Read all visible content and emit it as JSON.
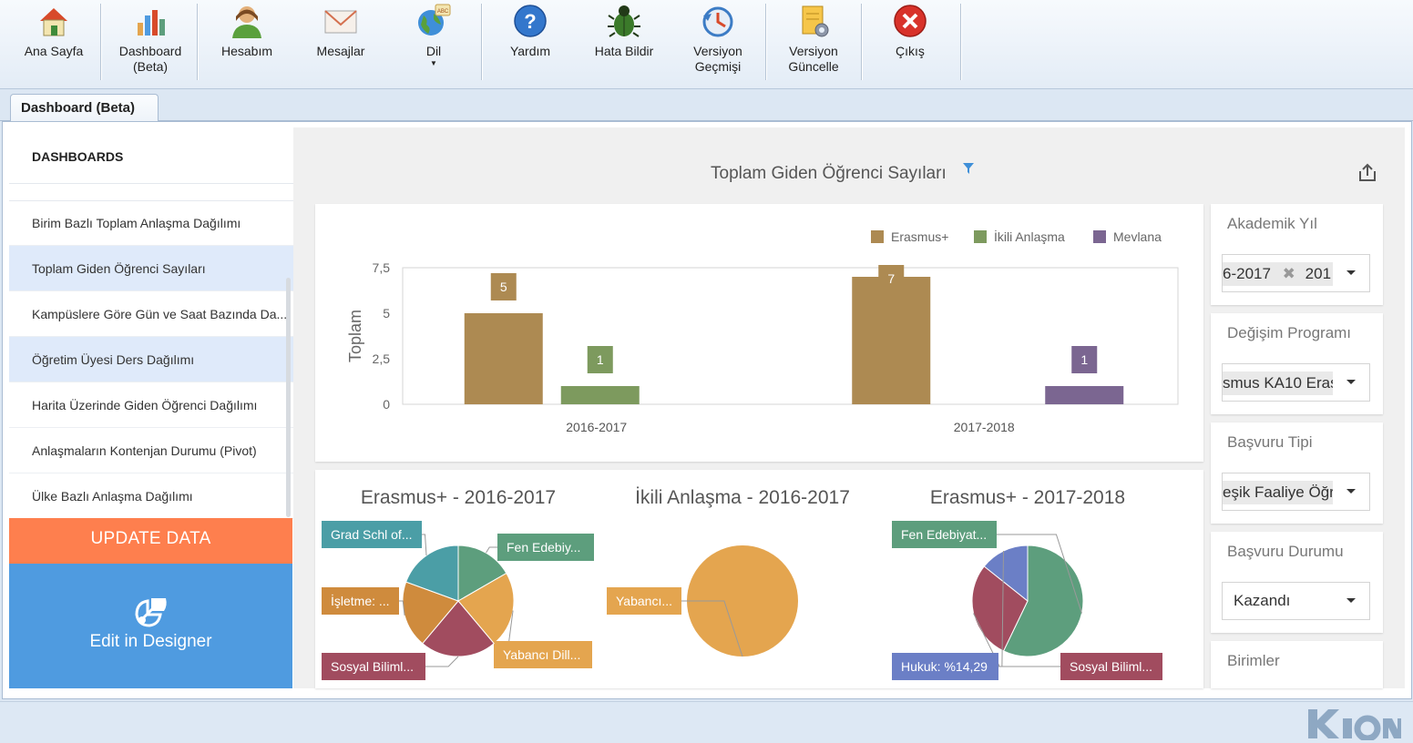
{
  "toolbar": {
    "home": "Ana Sayfa",
    "dashboard_l1": "Dashboard",
    "dashboard_l2": "(Beta)",
    "account": "Hesabım",
    "messages": "Mesajlar",
    "language": "Dil",
    "help": "Yardım",
    "report_bug": "Hata Bildir",
    "version_history_l1": "Versiyon",
    "version_history_l2": "Geçmişi",
    "version_update_l1": "Versiyon",
    "version_update_l2": "Güncelle",
    "exit": "Çıkış"
  },
  "tab": {
    "label": "Dashboard (Beta)"
  },
  "sidebar": {
    "heading": "DASHBOARDS",
    "items": [
      {
        "label": "Birim Bazlı Toplam Anlaşma Dağılımı"
      },
      {
        "label": "Toplam Giden Öğrenci Sayıları"
      },
      {
        "label": "Kampüslere Göre Gün ve Saat Bazında Da..."
      },
      {
        "label": "Öğretim Üyesi Ders Dağılımı"
      },
      {
        "label": "Harita Üzerinde Giden Öğrenci Dağılımı"
      },
      {
        "label": "Anlaşmaların Kontenjan Durumu (Pivot)"
      },
      {
        "label": "Ülke Bazlı Anlaşma Dağılımı"
      }
    ],
    "update_label": "UPDATE DATA",
    "designer_label": "Edit in Designer"
  },
  "dashboard": {
    "title": "Toplam Giden Öğrenci Sayıları"
  },
  "filters": {
    "academic_year": {
      "title": "Akademik Yıl",
      "tag1": "6-2017",
      "tag2": "201"
    },
    "exchange_program": {
      "title": "Değişim Programı",
      "tag": "smus KA10  Eras"
    },
    "application_type": {
      "title": "Başvuru Tipi",
      "tag": "eşik Faaliye  Öğre"
    },
    "application_status": {
      "title": "Başvuru Durumu",
      "value": "Kazandı"
    },
    "units": {
      "title": "Birimler"
    }
  },
  "chart_data": [
    {
      "type": "bar",
      "categories": [
        "2016-2017",
        "2017-2018"
      ],
      "series": [
        {
          "name": "Erasmus+",
          "values": [
            5,
            7
          ],
          "color": "#ad8a52"
        },
        {
          "name": "İkili Anlaşma",
          "values": [
            1,
            0
          ],
          "color": "#7d9a5e"
        },
        {
          "name": "Mevlana",
          "values": [
            0,
            1
          ],
          "color": "#7b6691"
        }
      ],
      "data_labels": [
        "5",
        "1",
        "7",
        "1"
      ],
      "ylabel": "Toplam",
      "yticks": [
        "0",
        "2,5",
        "5",
        "7,5"
      ],
      "ylim": [
        0,
        7.5
      ],
      "legend": "top-right",
      "grid": false
    },
    {
      "type": "pie",
      "title": "Erasmus+ - 2016-2017",
      "slices": [
        {
          "label": "Fen Edebiy...",
          "value": 16.67,
          "color": "#5d9e7d"
        },
        {
          "label": "Yabancı Dill...",
          "value": 22.22,
          "color": "#e4a54f"
        },
        {
          "label": "Sosyal Biliml...",
          "value": 22.22,
          "color": "#a14c5f"
        },
        {
          "label": "İşletme: ...",
          "value": 19.44,
          "color": "#cf8b3d"
        },
        {
          "label": "Grad Schl of...",
          "value": 19.44,
          "color": "#4b9ea6"
        }
      ]
    },
    {
      "type": "pie",
      "title": "İkili Anlaşma - 2016-2017",
      "slices": [
        {
          "label": "Yabancı...",
          "value": 100,
          "color": "#e4a54f"
        }
      ]
    },
    {
      "type": "pie",
      "title": "Erasmus+ - 2017-2018",
      "slices": [
        {
          "label": "Fen Edebiyat...",
          "value": 57.14,
          "color": "#5d9e7d"
        },
        {
          "label": "Sosyal Biliml...",
          "value": 28.57,
          "color": "#a14c5f"
        },
        {
          "label": "Hukuk: %14,29",
          "value": 14.29,
          "color": "#6b7fc6"
        }
      ]
    }
  ]
}
